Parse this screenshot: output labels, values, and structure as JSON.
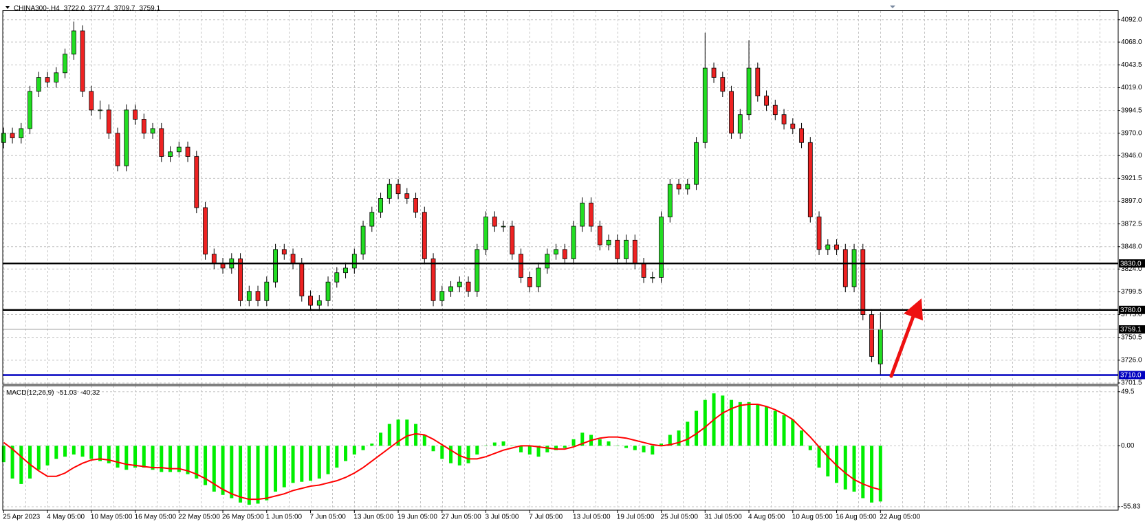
{
  "chart_data": [
    {
      "type": "candlestick",
      "title": "CHINA300-,H4",
      "header_values": [
        "3722.0",
        "3777.4",
        "3709.7",
        "3759.1"
      ],
      "up_color": "#22dd22",
      "down_color": "#ee2222",
      "grid": true,
      "ylim": [
        3700,
        4101.4
      ],
      "yticks": [
        {
          "value": 4092,
          "label": "4092.0"
        },
        {
          "value": 4068,
          "label": "4068.0"
        },
        {
          "value": 4043.5,
          "label": "4043.5"
        },
        {
          "value": 4019,
          "label": "4019.0"
        },
        {
          "value": 3994.5,
          "label": "3994.5"
        },
        {
          "value": 3970,
          "label": "3970.0"
        },
        {
          "value": 3946,
          "label": "3946.0"
        },
        {
          "value": 3921.5,
          "label": "3921.5"
        },
        {
          "value": 3897,
          "label": "3897.0"
        },
        {
          "value": 3872.5,
          "label": "3872.5"
        },
        {
          "value": 3848,
          "label": "3848.0"
        },
        {
          "value": 3824,
          "label": "3824.0"
        },
        {
          "value": 3799.5,
          "label": "3799.5"
        },
        {
          "value": 3775,
          "label": "3775.0"
        },
        {
          "value": 3750.5,
          "label": "3750.5"
        },
        {
          "value": 3726,
          "label": "3726.0"
        },
        {
          "value": 3701.5,
          "label": "3701.5"
        }
      ],
      "levels": [
        {
          "value": 3830,
          "label": "3830.0",
          "color": "#000000",
          "box_color": "#000000"
        },
        {
          "value": 3780,
          "label": "3780.0",
          "color": "#000000",
          "box_color": "#000000"
        },
        {
          "value": 3759.1,
          "label": "3759.1",
          "color": "#a0a0a0",
          "box_color": "#000000"
        },
        {
          "value": 3710,
          "label": "3710.0",
          "color": "#0000c0",
          "box_color": "#0000c0"
        }
      ],
      "open": [
        3960,
        3970,
        3965,
        3975,
        4015,
        4030,
        4025,
        4035,
        4055,
        4080,
        4015,
        3995,
        3995,
        3970,
        3935,
        3995,
        3985,
        3970,
        3975,
        3945,
        3950,
        3955,
        3945,
        3890,
        3840,
        3830,
        3825,
        3835,
        3790,
        3800,
        3790,
        3810,
        3845,
        3840,
        3830,
        3795,
        3785,
        3790,
        3810,
        3820,
        3825,
        3840,
        3870,
        3885,
        3900,
        3915,
        3905,
        3900,
        3885,
        3835,
        3790,
        3800,
        3805,
        3810,
        3800,
        3845,
        3880,
        3870,
        3870,
        3840,
        3815,
        3805,
        3825,
        3840,
        3845,
        3835,
        3870,
        3895,
        3870,
        3850,
        3855,
        3835,
        3855,
        3830,
        3815,
        3815,
        3880,
        3915,
        3910,
        3915,
        3960,
        4040,
        4030,
        4015,
        3970,
        3990,
        4040,
        4010,
        4000,
        3990,
        3980,
        3975,
        3960,
        3880,
        3845,
        3850,
        3845,
        3805,
        3845,
        3775,
        3722.0
      ],
      "high": [
        3976,
        3976,
        3981,
        4021,
        4036,
        4036,
        4041,
        4061,
        4090,
        4086,
        4021,
        4005,
        4001,
        3976,
        4001,
        4001,
        3991,
        3981,
        3981,
        3956,
        3961,
        3961,
        3951,
        3896,
        3846,
        3836,
        3841,
        3841,
        3806,
        3806,
        3816,
        3851,
        3851,
        3846,
        3836,
        3801,
        3796,
        3816,
        3826,
        3831,
        3846,
        3876,
        3891,
        3906,
        3921,
        3921,
        3911,
        3906,
        3891,
        3841,
        3806,
        3811,
        3816,
        3816,
        3851,
        3886,
        3886,
        3876,
        3876,
        3846,
        3821,
        3831,
        3846,
        3851,
        3851,
        3876,
        3901,
        3901,
        3876,
        3861,
        3861,
        3861,
        3861,
        3836,
        3821,
        3886,
        3921,
        3921,
        3921,
        3966,
        4078,
        4046,
        4036,
        4021,
        3996,
        4070,
        4046,
        4016,
        4006,
        3996,
        3986,
        3981,
        3966,
        3886,
        3856,
        3856,
        3851,
        3851,
        3851,
        3781,
        3777.4
      ],
      "low": [
        3954,
        3959,
        3959,
        3969,
        4009,
        4019,
        4019,
        4029,
        4049,
        4009,
        3989,
        3985,
        3964,
        3929,
        3929,
        3979,
        3964,
        3964,
        3939,
        3939,
        3944,
        3939,
        3884,
        3834,
        3824,
        3819,
        3819,
        3784,
        3784,
        3784,
        3784,
        3804,
        3834,
        3824,
        3789,
        3779,
        3779,
        3784,
        3804,
        3814,
        3819,
        3834,
        3864,
        3879,
        3894,
        3899,
        3894,
        3879,
        3829,
        3784,
        3784,
        3794,
        3799,
        3794,
        3794,
        3839,
        3864,
        3864,
        3834,
        3809,
        3799,
        3799,
        3819,
        3834,
        3829,
        3829,
        3864,
        3864,
        3844,
        3844,
        3829,
        3829,
        3824,
        3809,
        3809,
        3809,
        3874,
        3904,
        3904,
        3909,
        3954,
        4024,
        4009,
        3964,
        3964,
        3984,
        4004,
        3994,
        3984,
        3974,
        3969,
        3954,
        3874,
        3839,
        3839,
        3839,
        3799,
        3799,
        3769,
        3724,
        3709.7
      ],
      "close": [
        3970,
        3965,
        3975,
        4015,
        4030,
        4025,
        4035,
        4055,
        4080,
        4015,
        3995,
        3995,
        3970,
        3935,
        3995,
        3985,
        3970,
        3975,
        3945,
        3950,
        3955,
        3945,
        3890,
        3840,
        3830,
        3825,
        3835,
        3790,
        3800,
        3790,
        3810,
        3845,
        3840,
        3830,
        3795,
        3785,
        3790,
        3810,
        3820,
        3825,
        3840,
        3870,
        3885,
        3900,
        3915,
        3905,
        3900,
        3885,
        3835,
        3790,
        3800,
        3805,
        3810,
        3800,
        3845,
        3880,
        3870,
        3870,
        3840,
        3815,
        3805,
        3825,
        3840,
        3845,
        3835,
        3870,
        3895,
        3870,
        3850,
        3855,
        3835,
        3855,
        3830,
        3815,
        3815,
        3880,
        3915,
        3910,
        3915,
        3960,
        4040,
        4030,
        4015,
        3970,
        3990,
        4040,
        4010,
        4000,
        3990,
        3980,
        3975,
        3960,
        3880,
        3845,
        3850,
        3845,
        3805,
        3845,
        3775,
        3730,
        3759.1
      ]
    },
    {
      "type": "macd",
      "title": "MACD(12,26,9)",
      "header_values": [
        "-51.03",
        "-40.32"
      ],
      "hist_color": "#00ee00",
      "signal_color": "#ff0000",
      "grid": true,
      "ylim": [
        -59,
        55
      ],
      "yticks": [
        49.5,
        {
          "value": 0,
          "label": "0.00"
        },
        -55.83
      ],
      "categories": [
        "25 Apr 2023",
        null,
        null,
        null,
        null,
        "4 May 05:00",
        null,
        null,
        null,
        null,
        "10 May 05:00",
        null,
        null,
        null,
        null,
        "16 May 05:00",
        null,
        null,
        null,
        null,
        "22 May 05:00",
        null,
        null,
        null,
        null,
        "26 May 05:00",
        null,
        null,
        null,
        null,
        "1 Jun 05:00",
        null,
        null,
        null,
        null,
        "7 Jun 05:00",
        null,
        null,
        null,
        null,
        "13 Jun 05:00",
        null,
        null,
        null,
        null,
        "19 Jun 05:00",
        null,
        null,
        null,
        null,
        "27 Jun 05:00",
        null,
        null,
        null,
        null,
        "3 Jul 05:00",
        null,
        null,
        null,
        null,
        "7 Jul 05:00",
        null,
        null,
        null,
        null,
        "13 Jul 05:00",
        null,
        null,
        null,
        null,
        "19 Jul 05:00",
        null,
        null,
        null,
        null,
        "25 Jul 05:00",
        null,
        null,
        null,
        null,
        "31 Jul 05:00",
        null,
        null,
        null,
        null,
        "4 Aug 05:00",
        null,
        null,
        null,
        null,
        "10 Aug 05:00",
        null,
        null,
        null,
        null,
        "16 Aug 05:00",
        null,
        null,
        null,
        null,
        "22 Aug 05:00"
      ],
      "histogram": [
        -15,
        -30,
        -35,
        -30,
        -22,
        -18,
        -12,
        -10,
        -8,
        -10,
        -12,
        -14,
        -16,
        -20,
        -22,
        -20,
        -20,
        -22,
        -24,
        -24,
        -24,
        -26,
        -30,
        -36,
        -42,
        -45,
        -48,
        -52,
        -54,
        -53,
        -50,
        -42,
        -38,
        -34,
        -33,
        -32,
        -30,
        -26,
        -20,
        -14,
        -8,
        -4,
        2,
        12,
        20,
        24,
        24,
        20,
        10,
        -5,
        -12,
        -16,
        -18,
        -16,
        -8,
        0,
        3,
        4,
        0,
        -6,
        -8,
        -10,
        -6,
        -4,
        -2,
        6,
        12,
        10,
        6,
        4,
        0,
        -2,
        -4,
        -6,
        -8,
        2,
        10,
        14,
        22,
        32,
        42,
        48,
        46,
        42,
        40,
        40,
        38,
        36,
        32,
        28,
        24,
        14,
        -4,
        -20,
        -28,
        -34,
        -40,
        -42,
        -48,
        -52,
        -51.03
      ],
      "signal": [
        3,
        -3,
        -10,
        -17,
        -23,
        -28,
        -28,
        -25,
        -20,
        -16,
        -13,
        -12,
        -13,
        -15,
        -17,
        -18,
        -19,
        -20,
        -20,
        -21,
        -21,
        -23,
        -26,
        -30,
        -35,
        -40,
        -44,
        -47,
        -49,
        -49,
        -48,
        -46,
        -44,
        -41,
        -39,
        -37,
        -36,
        -34,
        -32,
        -29,
        -25,
        -20,
        -14,
        -8,
        -2,
        4,
        9,
        11,
        10,
        6,
        1,
        -4,
        -9,
        -12,
        -12,
        -10,
        -7,
        -4,
        -2,
        0,
        0,
        -1,
        -2,
        -3,
        -3,
        -1,
        2,
        5,
        7,
        8,
        8,
        7,
        5,
        3,
        1,
        0,
        1,
        3,
        6,
        11,
        17,
        24,
        30,
        34,
        37,
        38,
        38,
        36,
        33,
        29,
        24,
        16,
        8,
        -1,
        -10,
        -18,
        -25,
        -31,
        -35,
        -38,
        -40.32
      ]
    }
  ]
}
